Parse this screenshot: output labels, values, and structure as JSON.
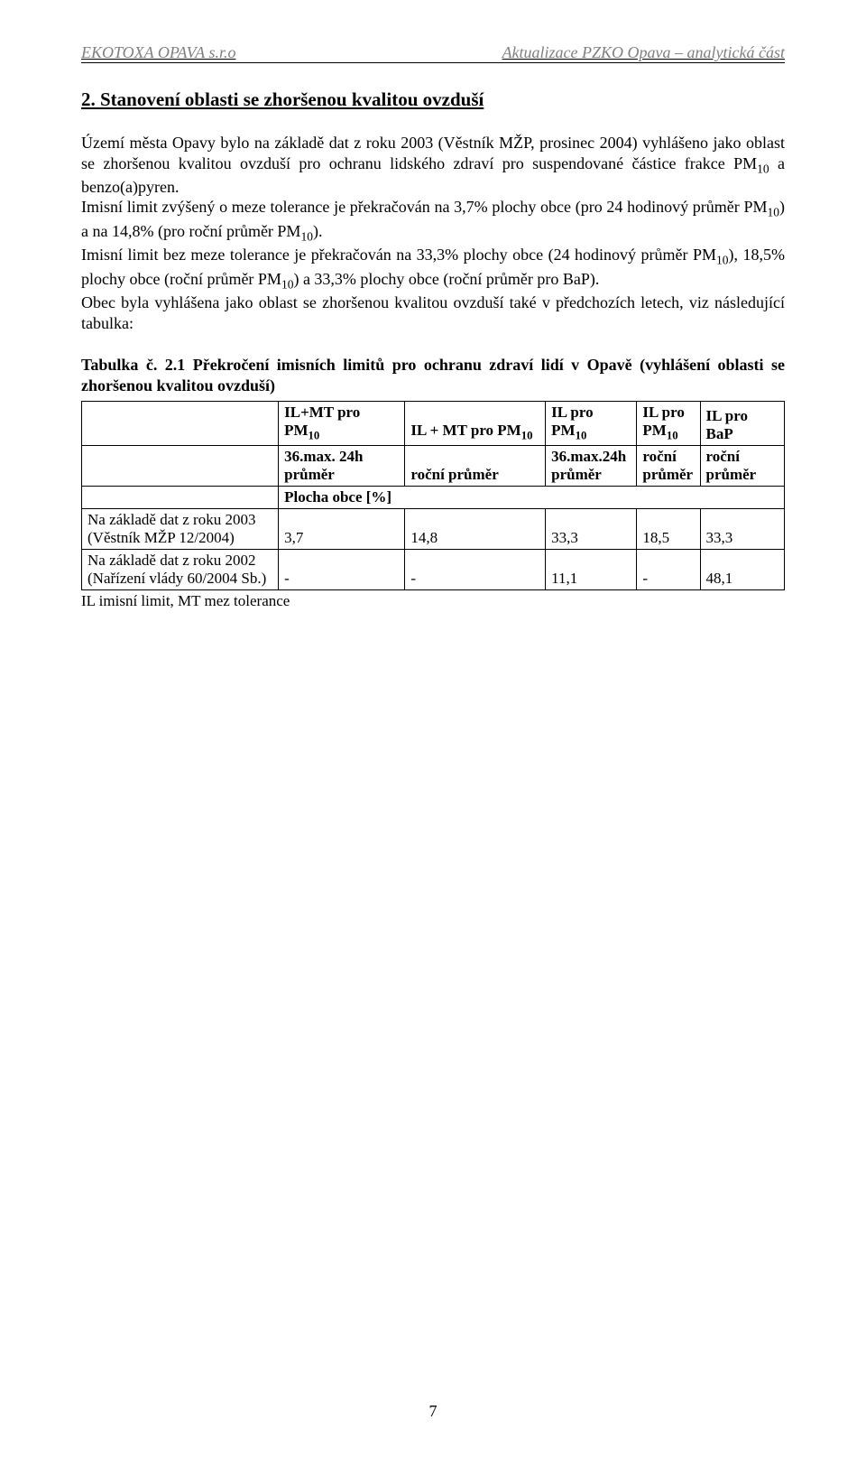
{
  "header": {
    "left": "EKOTOXA OPAVA s.r.o",
    "right": "Aktualizace PZKO Opava – analytická část"
  },
  "section_title": "2. Stanovení oblasti se zhoršenou kvalitou ovzduší",
  "paragraphs": [
    "Území města Opavy bylo na základě dat z roku 2003 (Věstník MŽP, prosinec 2004) vyhlášeno jako oblast se zhoršenou kvalitou ovzduší pro ochranu lidského zdraví pro suspendované částice frakce PM₁₀ a benzo(a)pyren.",
    "Imisní limit zvýšený o meze tolerance je překračován na 3,7% plochy obce (pro 24 hodinový průměr PM₁₀) a na 14,8% (pro roční průměr PM₁₀).",
    "Imisní limit bez meze tolerance je překračován na 33,3% plochy obce (24 hodinový průměr PM₁₀), 18,5% plochy obce (roční průměr PM₁₀) a 33,3% plochy obce (roční průměr pro BaP).",
    "Obec byla vyhlášena jako oblast se zhoršenou kvalitou ovzduší také v předchozích letech, viz následující tabulka:"
  ],
  "table_caption": "Tabulka č. 2.1 Překročení imisních limitů pro ochranu zdraví lidí v Opavě (vyhlášení oblasti se zhoršenou kvalitou ovzduší)",
  "table": {
    "header_row1": [
      "",
      "IL+MT pro PM₁₀",
      "IL + MT pro PM₁₀",
      "IL pro PM₁₀",
      "IL pro PM₁₀",
      "IL pro BaP"
    ],
    "header_row2": [
      "",
      "36.max. 24h průměr",
      "roční průměr",
      "36.max.24h průměr",
      "roční průměr",
      "roční průměr"
    ],
    "header_row3": [
      "",
      "Plocha obce [%]",
      "",
      "",
      "",
      ""
    ],
    "rows": [
      {
        "label": "Na základě dat z roku 2003 (Věstník MŽP 12/2004)",
        "c1": "3,7",
        "c2": "14,8",
        "c3": "33,3",
        "c4": "18,5",
        "c5": "33,3"
      },
      {
        "label": "Na základě dat z roku 2002 (Nařízení vlády 60/2004 Sb.)",
        "c1": "-",
        "c2": "-",
        "c3": "11,1",
        "c4": "-",
        "c5": "48,1"
      }
    ]
  },
  "footnote": "IL imisní limit, MT mez tolerance",
  "page_number": "7",
  "colors": {
    "header_text": "#7f7f7f",
    "body_text": "#000000",
    "background": "#ffffff",
    "border": "#000000"
  },
  "fonts": {
    "body_family": "Times New Roman",
    "body_size_pt": 12,
    "title_size_pt": 14
  }
}
